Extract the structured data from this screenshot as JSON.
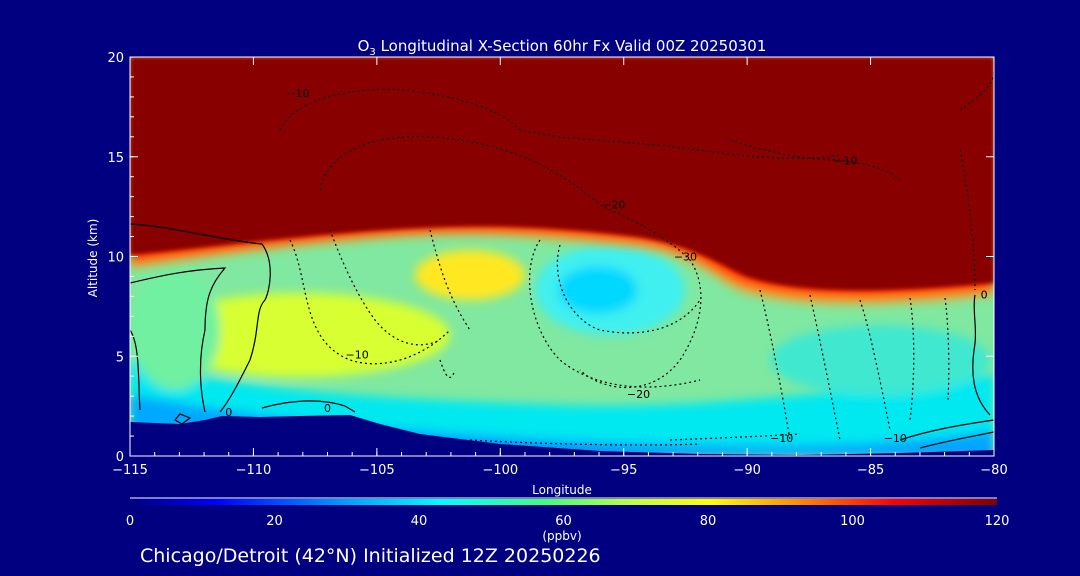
{
  "chart_data": {
    "type": "heatmap",
    "title_prefix": "O",
    "title_subscript": "3",
    "title_rest": " Longitudinal X-Section 60hr  Fx Valid 00Z 20250301",
    "xlabel": "Longitude",
    "ylabel": "Altitude (km)",
    "xlim": [
      -115,
      -80
    ],
    "ylim": [
      0,
      20
    ],
    "x_ticks": [
      "−115",
      "−110",
      "−105",
      "−100",
      "−95",
      "−90",
      "−85",
      "−80"
    ],
    "y_ticks": [
      "0",
      "5",
      "10",
      "15",
      "20"
    ],
    "colorbar": {
      "range": [
        0,
        120
      ],
      "ticks": [
        "0",
        "20",
        "40",
        "60",
        "80",
        "100",
        "120"
      ],
      "unit_label": "(ppbv)",
      "colors": [
        "#000080",
        "#0000ff",
        "#00a0ff",
        "#00ffff",
        "#40ff80",
        "#c0ff40",
        "#ffff00",
        "#ff8000",
        "#ff0000",
        "#800000"
      ]
    },
    "ozone_field_approx": [
      {
        "altitude_km": 15,
        "ozone_ppbv": 120,
        "note_region": "stratosphere"
      },
      {
        "altitude_km": 8,
        "longitude": -96,
        "ozone_ppbv": 40
      },
      {
        "altitude_km": 5,
        "longitude": -107,
        "ozone_ppbv": 65
      },
      {
        "altitude_km": 1,
        "longitude": -90,
        "ozone_ppbv": 30
      }
    ],
    "contour_labels": [
      {
        "text": "−10",
        "lon": -108.2,
        "alt": 18.2
      },
      {
        "text": "−10",
        "lon": -86.0,
        "alt": 14.8
      },
      {
        "text": "−20",
        "lon": -95.4,
        "alt": 12.6
      },
      {
        "text": "−30",
        "lon": -92.5,
        "alt": 10.0
      },
      {
        "text": "−10",
        "lon": -105.8,
        "alt": 5.1
      },
      {
        "text": "−20",
        "lon": -94.4,
        "alt": 3.1
      },
      {
        "text": "−10",
        "lon": -88.6,
        "alt": 0.9
      },
      {
        "text": "−10",
        "lon": -84.0,
        "alt": 0.9
      },
      {
        "text": "0",
        "lon": -111.0,
        "alt": 2.2
      },
      {
        "text": "0",
        "lon": -107.0,
        "alt": 2.4
      },
      {
        "text": "0",
        "lon": -80.4,
        "alt": 8.1
      }
    ]
  },
  "footer": {
    "caption": "Chicago/Detroit (42°N) Initialized 12Z 20250226"
  }
}
